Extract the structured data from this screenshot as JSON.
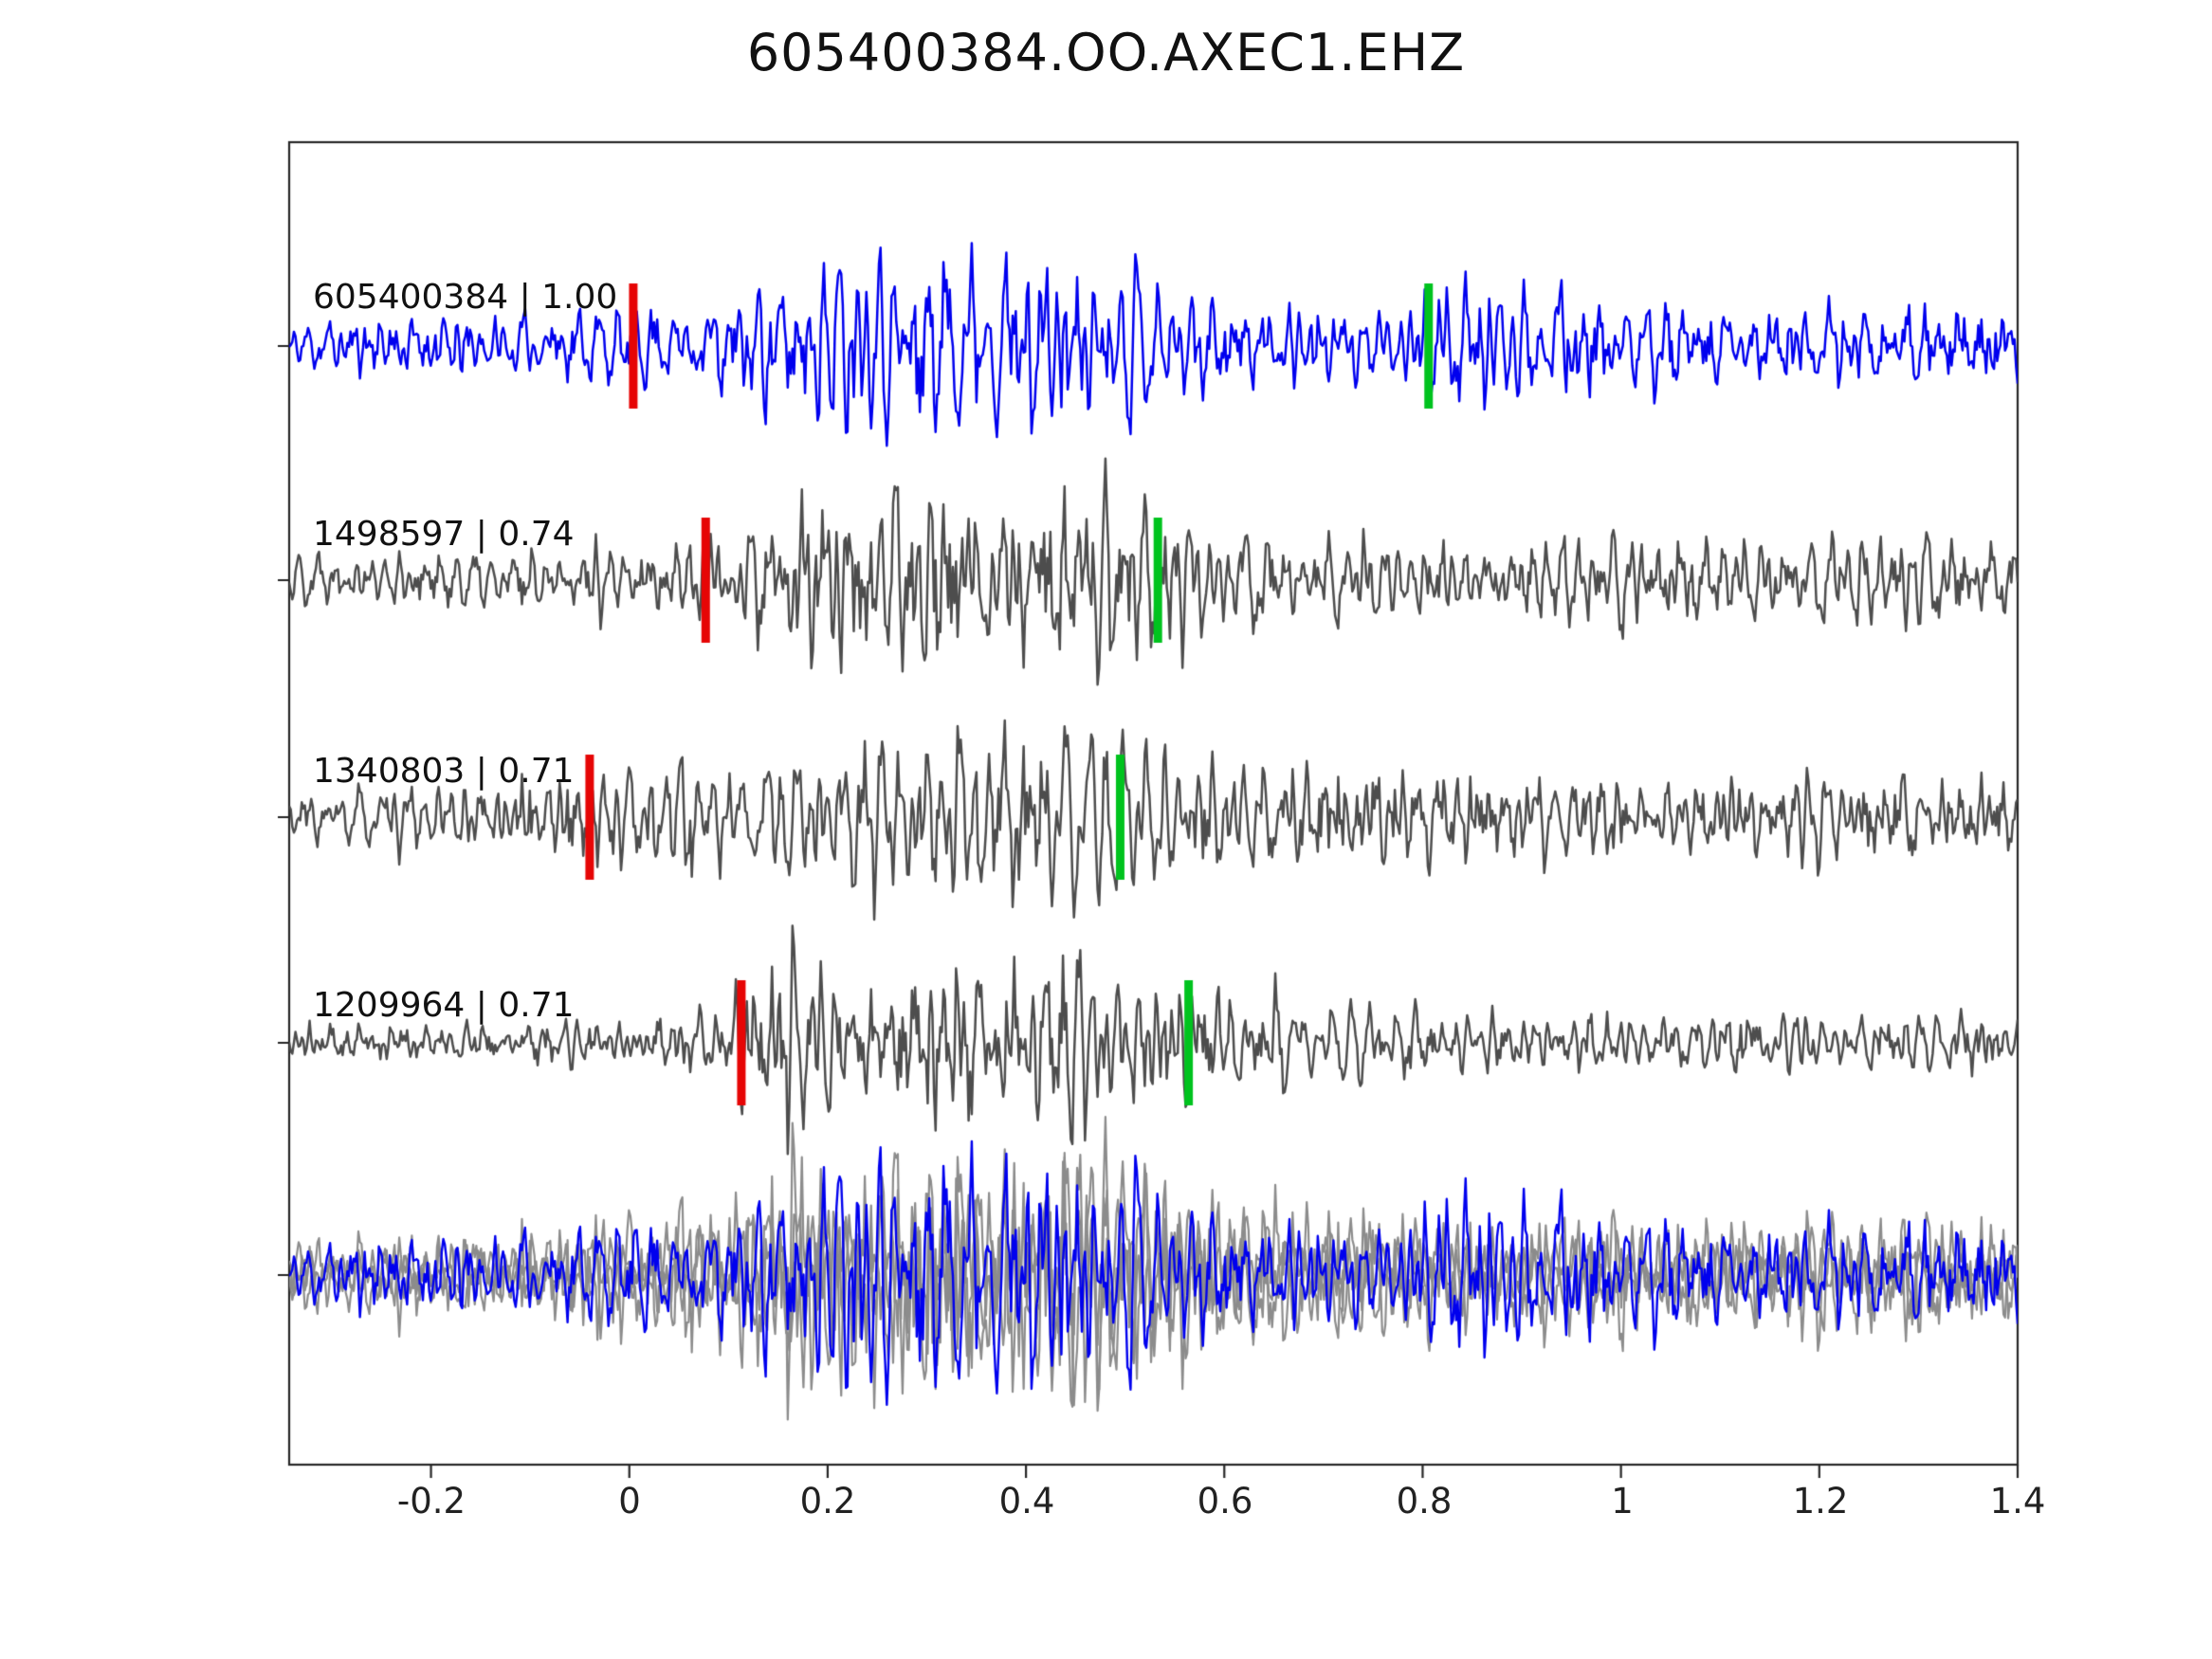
{
  "title": "605400384.OO.AXEC1.EHZ",
  "chart_data": {
    "type": "line",
    "subtype": "seismic-waveform-stack",
    "title": "605400384.OO.AXEC1.EHZ",
    "xlabel": "",
    "ylabel": "",
    "grid": false,
    "legend": "none",
    "axis": {
      "xlim": [
        -0.343,
        1.4
      ],
      "ticks": [
        -0.2,
        0,
        0.2,
        0.4,
        0.6,
        0.8,
        1,
        1.2,
        1.4
      ],
      "tick_labels": [
        "-0.2",
        "0",
        "0.2",
        "0.4",
        "0.6",
        "0.8",
        "1",
        "1.2",
        "1.4"
      ]
    },
    "marker_colors": {
      "red": "#e60505",
      "green": "#00c31e"
    },
    "traces": [
      {
        "id": "605400384",
        "correlation": "1.00",
        "label": "605400384 | 1.00",
        "color": "#0000ee",
        "red_marker_t": 0.004,
        "green_marker_t": 0.806,
        "seed": 11,
        "envelope": [
          [
            -0.343,
            0.3
          ],
          [
            -0.1,
            0.33
          ],
          [
            0.05,
            0.42
          ],
          [
            0.15,
            0.75
          ],
          [
            0.25,
            0.92
          ],
          [
            0.35,
            1.0
          ],
          [
            0.45,
            0.85
          ],
          [
            0.55,
            0.6
          ],
          [
            0.65,
            0.45
          ],
          [
            0.75,
            0.38
          ],
          [
            0.85,
            0.65
          ],
          [
            0.92,
            0.78
          ],
          [
            1.0,
            0.48
          ],
          [
            1.1,
            0.42
          ],
          [
            1.2,
            0.44
          ],
          [
            1.3,
            0.48
          ],
          [
            1.4,
            0.38
          ]
        ]
      },
      {
        "id": "1498597",
        "correlation": "0.74",
        "label": "1498597 | 0.74",
        "color": "#4d4d4d",
        "red_marker_t": 0.077,
        "green_marker_t": 0.533,
        "seed": 22,
        "envelope": [
          [
            -0.343,
            0.28
          ],
          [
            -0.1,
            0.31
          ],
          [
            0.0,
            0.34
          ],
          [
            0.1,
            0.52
          ],
          [
            0.2,
            0.88
          ],
          [
            0.3,
            1.0
          ],
          [
            0.4,
            0.9
          ],
          [
            0.5,
            0.96
          ],
          [
            0.58,
            0.7
          ],
          [
            0.7,
            0.46
          ],
          [
            0.8,
            0.42
          ],
          [
            0.9,
            0.36
          ],
          [
            1.0,
            0.52
          ],
          [
            1.1,
            0.46
          ],
          [
            1.2,
            0.42
          ],
          [
            1.3,
            0.46
          ],
          [
            1.4,
            0.4
          ]
        ]
      },
      {
        "id": "1340803",
        "correlation": "0.71",
        "label": "1340803 | 0.71",
        "color": "#4d4d4d",
        "red_marker_t": -0.04,
        "green_marker_t": 0.495,
        "seed": 33,
        "envelope": [
          [
            -0.343,
            0.26
          ],
          [
            -0.15,
            0.32
          ],
          [
            -0.05,
            0.62
          ],
          [
            0.02,
            0.78
          ],
          [
            0.1,
            0.52
          ],
          [
            0.2,
            0.72
          ],
          [
            0.3,
            0.95
          ],
          [
            0.38,
            1.0
          ],
          [
            0.48,
            0.82
          ],
          [
            0.55,
            0.62
          ],
          [
            0.65,
            0.5
          ],
          [
            0.75,
            0.66
          ],
          [
            0.85,
            0.56
          ],
          [
            0.95,
            0.42
          ],
          [
            1.05,
            0.36
          ],
          [
            1.15,
            0.46
          ],
          [
            1.25,
            0.52
          ],
          [
            1.35,
            0.46
          ],
          [
            1.4,
            0.42
          ]
        ]
      },
      {
        "id": "1209964",
        "correlation": "0.71",
        "label": "1209964 | 0.71",
        "color": "#4d4d4d",
        "red_marker_t": 0.113,
        "green_marker_t": 0.564,
        "seed": 44,
        "envelope": [
          [
            -0.343,
            0.2
          ],
          [
            -0.1,
            0.23
          ],
          [
            0.05,
            0.26
          ],
          [
            0.12,
            0.62
          ],
          [
            0.16,
            1.0
          ],
          [
            0.21,
            0.55
          ],
          [
            0.3,
            0.82
          ],
          [
            0.4,
            0.92
          ],
          [
            0.5,
            0.72
          ],
          [
            0.6,
            0.56
          ],
          [
            0.7,
            0.42
          ],
          [
            0.8,
            0.32
          ],
          [
            0.9,
            0.3
          ],
          [
            1.0,
            0.32
          ],
          [
            1.1,
            0.36
          ],
          [
            1.2,
            0.32
          ],
          [
            1.3,
            0.3
          ],
          [
            1.4,
            0.24
          ]
        ]
      }
    ],
    "overlay": {
      "description": "all detections superimposed, template highlighted",
      "gray_members": [
        1,
        2,
        3
      ],
      "highlight_member": 0,
      "gray_color": "#8c8c8c",
      "highlight_color": "#0000ee",
      "amp_scale": 1.3
    }
  }
}
